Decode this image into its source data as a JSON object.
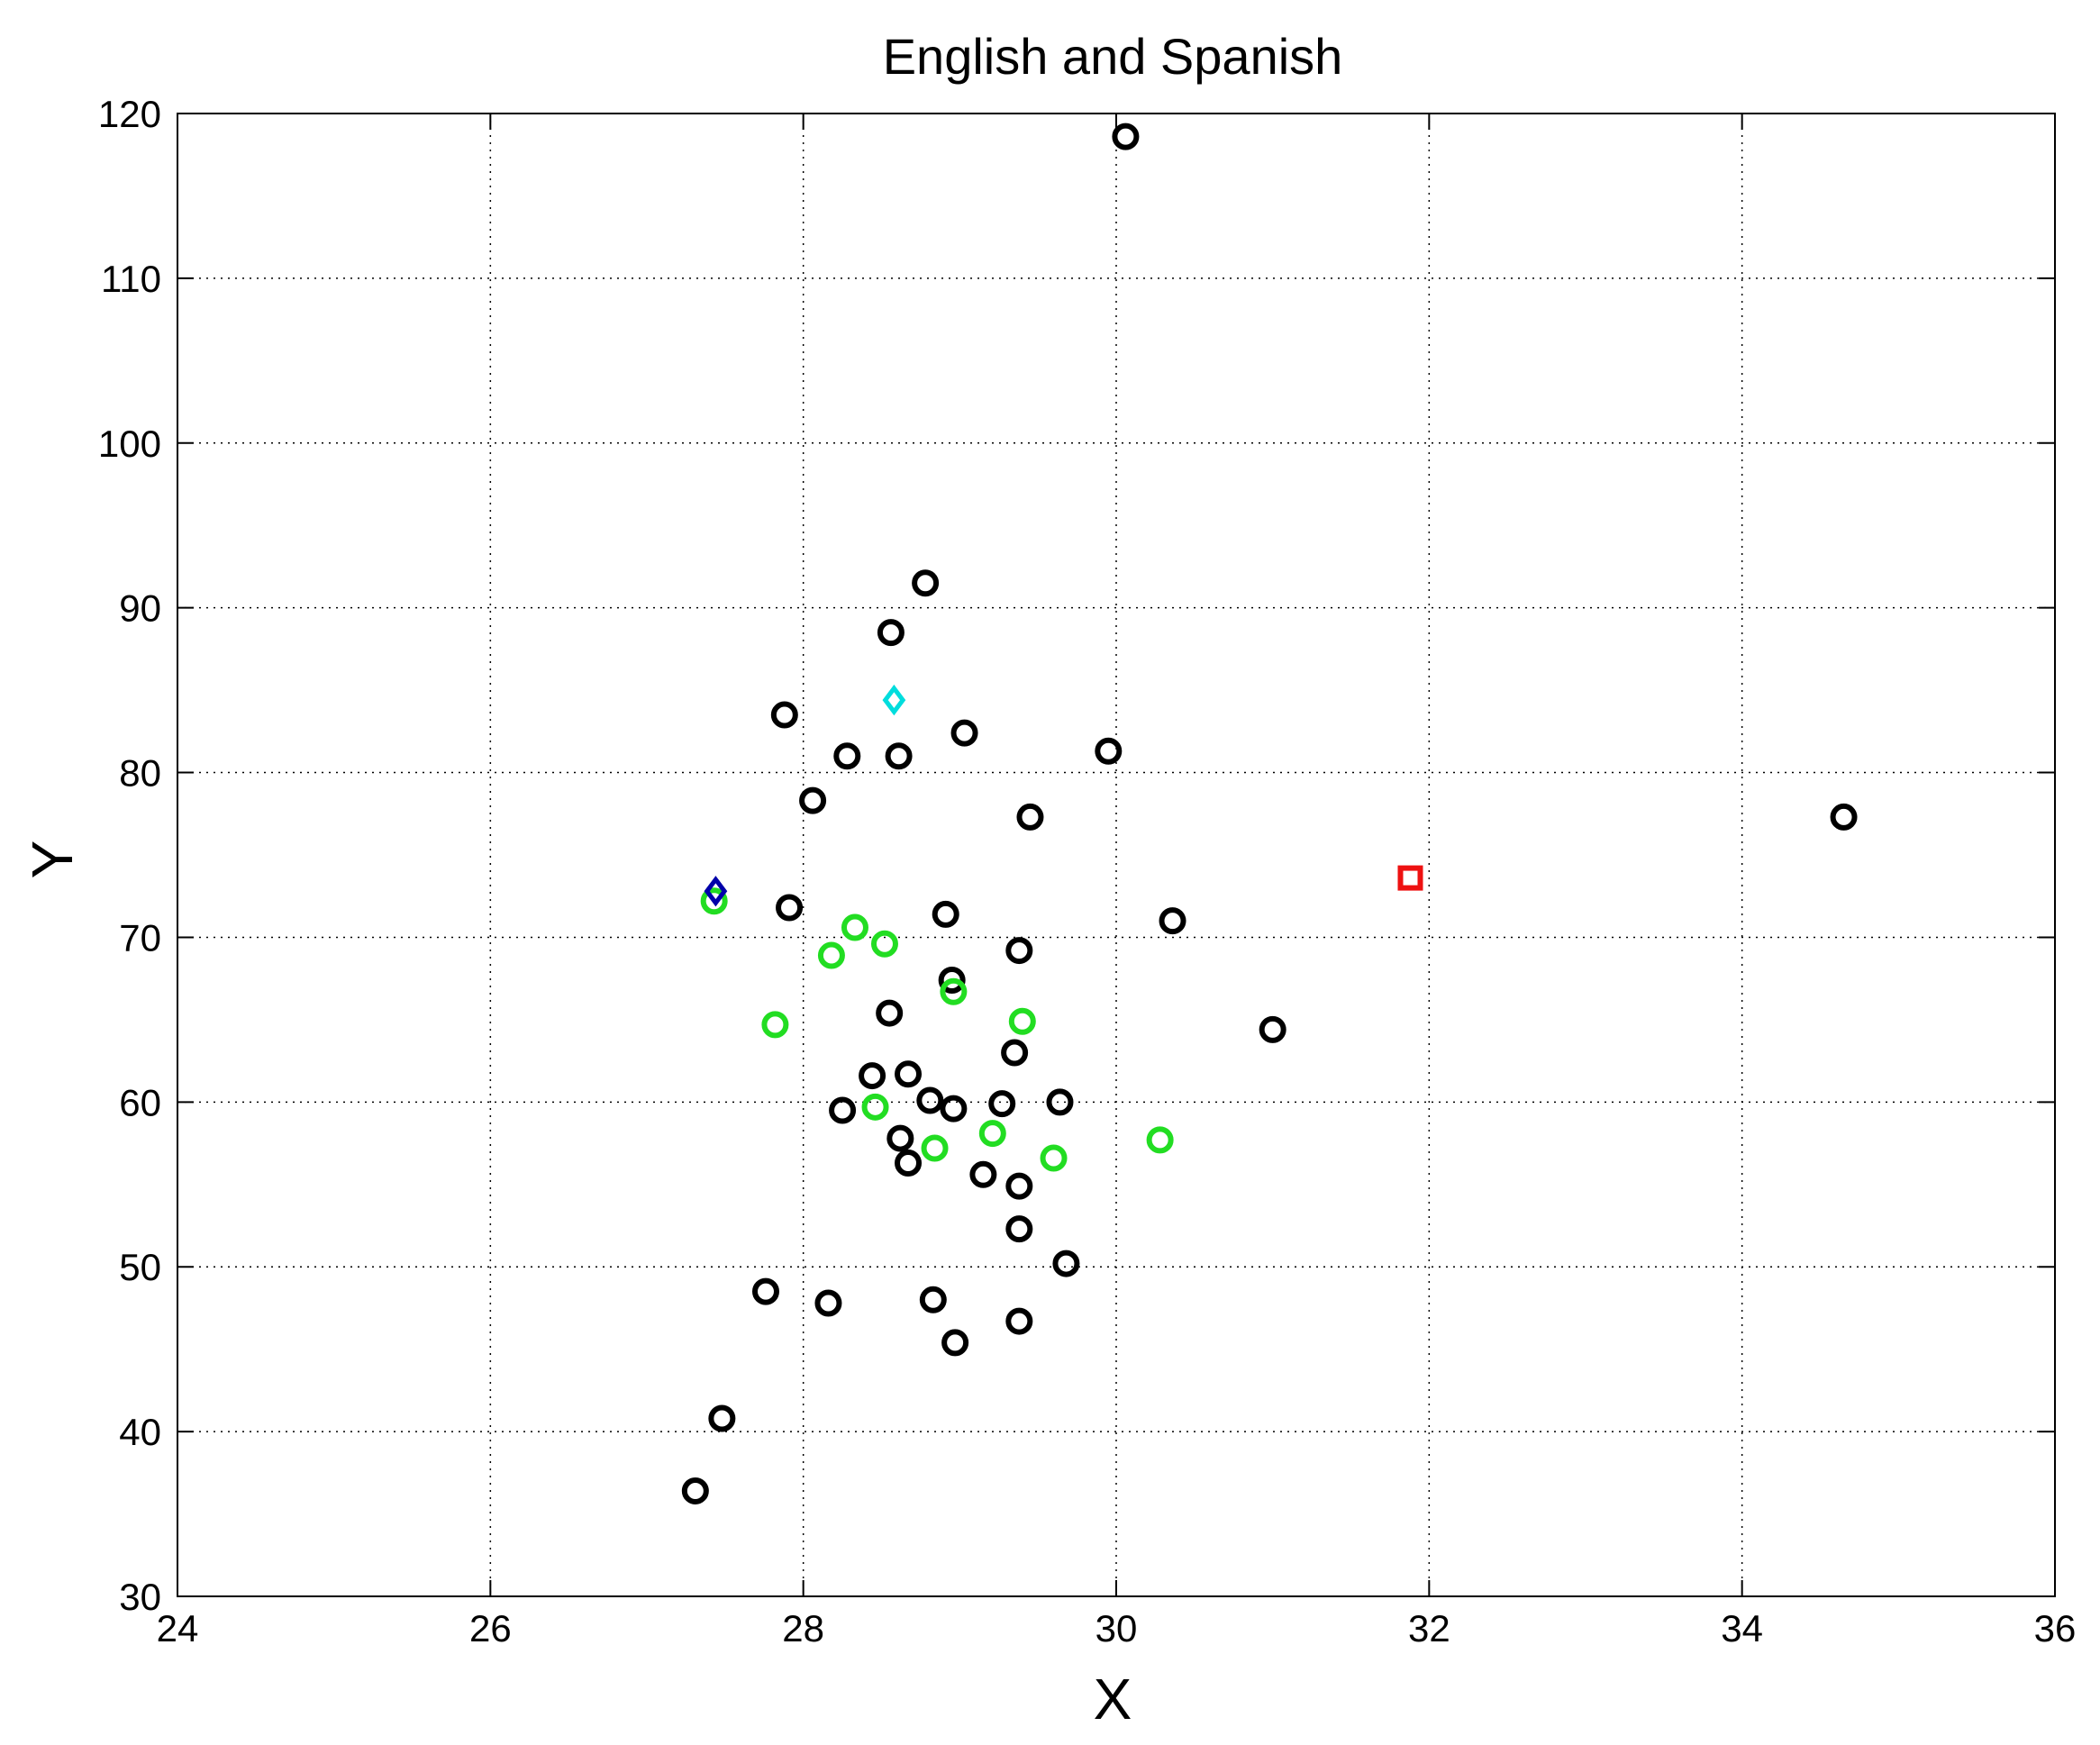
{
  "chart_data": {
    "type": "scatter",
    "title": "English and Spanish",
    "xlabel": "X",
    "ylabel": "Y",
    "xlim": [
      24,
      36
    ],
    "ylim": [
      30,
      120
    ],
    "xticks": [
      24,
      26,
      28,
      30,
      32,
      34,
      36
    ],
    "yticks": [
      30,
      40,
      50,
      60,
      70,
      80,
      90,
      100,
      110,
      120
    ],
    "grid": true,
    "series": [
      {
        "marker": "circle",
        "color": "#000000",
        "points": [
          {
            "x": 30.06,
            "y": 118.6
          },
          {
            "x": 28.78,
            "y": 91.5
          },
          {
            "x": 28.56,
            "y": 88.5
          },
          {
            "x": 27.88,
            "y": 83.5
          },
          {
            "x": 29.03,
            "y": 82.4
          },
          {
            "x": 28.28,
            "y": 81.0
          },
          {
            "x": 28.61,
            "y": 81.0
          },
          {
            "x": 29.95,
            "y": 81.3
          },
          {
            "x": 28.06,
            "y": 78.3
          },
          {
            "x": 29.45,
            "y": 77.3
          },
          {
            "x": 34.65,
            "y": 77.3
          },
          {
            "x": 27.91,
            "y": 71.8
          },
          {
            "x": 28.91,
            "y": 71.4
          },
          {
            "x": 30.36,
            "y": 71.0
          },
          {
            "x": 29.38,
            "y": 69.2
          },
          {
            "x": 28.95,
            "y": 67.4
          },
          {
            "x": 28.55,
            "y": 65.4
          },
          {
            "x": 31.0,
            "y": 64.4
          },
          {
            "x": 29.35,
            "y": 63.0
          },
          {
            "x": 28.44,
            "y": 61.6
          },
          {
            "x": 28.67,
            "y": 61.7
          },
          {
            "x": 28.25,
            "y": 59.5
          },
          {
            "x": 28.81,
            "y": 60.1
          },
          {
            "x": 28.96,
            "y": 59.6
          },
          {
            "x": 29.27,
            "y": 59.9
          },
          {
            "x": 29.64,
            "y": 60.0
          },
          {
            "x": 28.62,
            "y": 57.8
          },
          {
            "x": 28.67,
            "y": 56.3
          },
          {
            "x": 29.15,
            "y": 55.6
          },
          {
            "x": 29.38,
            "y": 54.9
          },
          {
            "x": 29.38,
            "y": 52.3
          },
          {
            "x": 29.68,
            "y": 50.2
          },
          {
            "x": 27.76,
            "y": 48.5
          },
          {
            "x": 28.16,
            "y": 47.8
          },
          {
            "x": 28.83,
            "y": 48.0
          },
          {
            "x": 29.38,
            "y": 46.7
          },
          {
            "x": 28.97,
            "y": 45.4
          },
          {
            "x": 27.48,
            "y": 40.8
          },
          {
            "x": 27.31,
            "y": 36.4
          }
        ]
      },
      {
        "marker": "circle",
        "color": "#22dd22",
        "points": [
          {
            "x": 27.43,
            "y": 72.2
          },
          {
            "x": 28.33,
            "y": 70.6
          },
          {
            "x": 28.52,
            "y": 69.6
          },
          {
            "x": 28.18,
            "y": 68.9
          },
          {
            "x": 28.96,
            "y": 66.7
          },
          {
            "x": 29.4,
            "y": 64.9
          },
          {
            "x": 27.82,
            "y": 64.7
          },
          {
            "x": 28.46,
            "y": 59.7
          },
          {
            "x": 29.21,
            "y": 58.1
          },
          {
            "x": 28.84,
            "y": 57.2
          },
          {
            "x": 29.6,
            "y": 56.6
          },
          {
            "x": 30.28,
            "y": 57.7
          }
        ]
      },
      {
        "marker": "square",
        "color": "#ee1111",
        "points": [
          {
            "x": 31.88,
            "y": 73.6
          }
        ]
      },
      {
        "marker": "diamond",
        "color": "#0000aa",
        "points": [
          {
            "x": 27.44,
            "y": 72.8
          }
        ]
      },
      {
        "marker": "diamond",
        "color": "#00dddd",
        "points": [
          {
            "x": 28.58,
            "y": 84.4
          }
        ]
      }
    ]
  }
}
